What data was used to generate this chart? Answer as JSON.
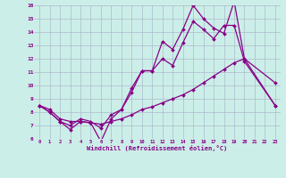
{
  "xlabel": "Windchill (Refroidissement éolien,°C)",
  "background_color": "#cceee8",
  "grid_color": "#aabbcc",
  "line_color": "#880088",
  "xlim": [
    -0.5,
    23.5
  ],
  "ylim": [
    6,
    16
  ],
  "xticks": [
    0,
    1,
    2,
    3,
    4,
    5,
    6,
    7,
    8,
    9,
    10,
    11,
    12,
    13,
    14,
    15,
    16,
    17,
    18,
    19,
    20,
    21,
    22,
    23
  ],
  "yticks": [
    6,
    7,
    8,
    9,
    10,
    11,
    12,
    13,
    14,
    15,
    16
  ],
  "series": [
    [
      8.5,
      8.0,
      7.3,
      6.7,
      7.3,
      7.2,
      5.8,
      7.5,
      8.2,
      9.8,
      11.1,
      11.1,
      13.3,
      12.7,
      14.2,
      16.0,
      15.0,
      14.3,
      13.9,
      16.3,
      12.0,
      null,
      null,
      10.2
    ],
    [
      8.5,
      8.0,
      7.3,
      7.0,
      7.5,
      7.3,
      6.8,
      7.8,
      8.2,
      9.5,
      11.1,
      11.1,
      12.0,
      11.5,
      13.2,
      14.8,
      14.2,
      13.5,
      14.5,
      14.5,
      11.8,
      null,
      null,
      8.5
    ],
    [
      8.5,
      8.2,
      7.5,
      7.3,
      7.3,
      7.2,
      7.1,
      7.3,
      7.5,
      7.8,
      8.2,
      8.4,
      8.7,
      9.0,
      9.3,
      9.7,
      10.2,
      10.7,
      11.2,
      11.7,
      12.0,
      null,
      null,
      8.5
    ]
  ]
}
